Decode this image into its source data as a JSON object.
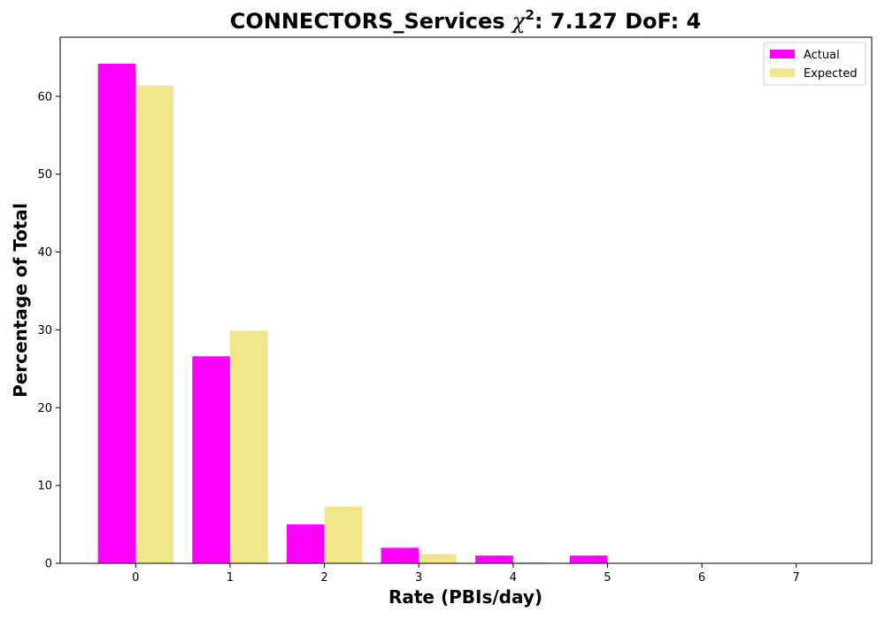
{
  "chart_data": {
    "type": "bar",
    "title": {
      "prefix": "CONNECTORS_Services ",
      "symbol": "χ",
      "superscript": "2",
      "suffix": ": 7.127 DoF: 4"
    },
    "xlabel": "Rate (PBIs/day)",
    "ylabel": "Percentage of Total",
    "categories": [
      "0",
      "1",
      "2",
      "3",
      "4",
      "5",
      "6",
      "7"
    ],
    "series": [
      {
        "name": "Actual",
        "color": "#ff00ff",
        "values": [
          64.2,
          26.6,
          5.0,
          2.0,
          1.0,
          1.0,
          0,
          0
        ]
      },
      {
        "name": "Expected",
        "color": "#f0e68c",
        "values": [
          61.4,
          29.9,
          7.3,
          1.2,
          0.15,
          0.02,
          0,
          0
        ]
      }
    ],
    "yticks": [
      0,
      10,
      20,
      30,
      40,
      50,
      60
    ],
    "ylim": [
      0,
      67.6
    ],
    "xlim": [
      -0.8,
      7.8
    ],
    "legend_position": "top-right",
    "grid": false
  }
}
